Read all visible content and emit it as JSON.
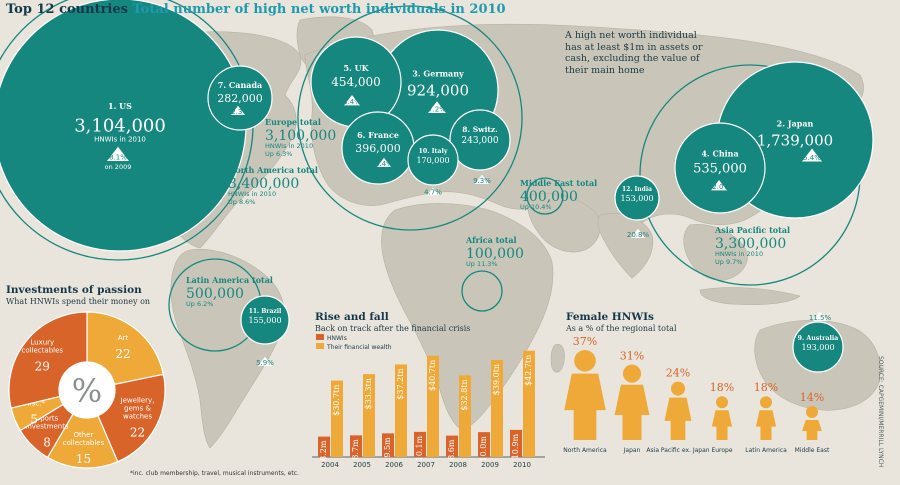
{
  "header": {
    "title_main": "Top 12 countries",
    "title_sub": "Total number of high net worth individuals in 2010"
  },
  "note": "A high net worth individual has at least $1m in assets or cash, excluding the value of their main home",
  "source": "SOURCE: CAPGEMINI/MERRILL LYNCH",
  "colors": {
    "teal": "#16877f",
    "orange_dark": "#d9642a",
    "orange_light": "#eea938",
    "land": "#c9c6b9",
    "background": "#e9e5dc",
    "accent_text": "#1d9aae",
    "female_text": "#d9642a"
  },
  "chart_data": [
    {
      "type": "bubble",
      "title": "Total number of high net worth individuals in 2010",
      "countries": [
        {
          "rank": "1.",
          "name": "US",
          "value": "3,104,000",
          "sub": "HNWIs in 2010",
          "change": "8.1%",
          "change_sub": "on 2009"
        },
        {
          "rank": "2.",
          "name": "Japan",
          "value": "1,739,000",
          "change": "5.4%"
        },
        {
          "rank": "3.",
          "name": "Germany",
          "value": "924,000",
          "change": "7.2%"
        },
        {
          "rank": "4.",
          "name": "China",
          "value": "535,000",
          "change": "12.0%"
        },
        {
          "rank": "5.",
          "name": "UK",
          "value": "454,000",
          "change": "3.4%"
        },
        {
          "rank": "6.",
          "name": "France",
          "value": "396,000",
          "change": "3.4%"
        },
        {
          "rank": "7.",
          "name": "Canada",
          "value": "282,000",
          "change": "12.3%"
        },
        {
          "rank": "8.",
          "name": "Switz.",
          "value": "243,000",
          "change": "9.3%"
        },
        {
          "rank": "9.",
          "name": "Australia",
          "value": "193,000",
          "change": "11.5%"
        },
        {
          "rank": "10.",
          "name": "Italy",
          "value": "170,000",
          "change": "4.7%"
        },
        {
          "rank": "11.",
          "name": "Brazil",
          "value": "155,000",
          "change": "5.9%"
        },
        {
          "rank": "12.",
          "name": "India",
          "value": "153,000",
          "change": "20.8%"
        }
      ],
      "regions": [
        {
          "name": "Europe total",
          "value": "3,100,000",
          "sub": "HNWIs in 2010",
          "change": "Up 6.3%"
        },
        {
          "name": "North America total",
          "value": "3,400,000",
          "sub": "HNWIs in 2010",
          "change": "Up 8.6%"
        },
        {
          "name": "Middle East total",
          "value": "400,000",
          "change": "Up 10.4%"
        },
        {
          "name": "Africa total",
          "value": "100,000",
          "change": "Up 11.3%"
        },
        {
          "name": "Latin America total",
          "value": "500,000",
          "change": "Up 6.2%"
        },
        {
          "name": "Asia Pacific total",
          "value": "3,300,000",
          "sub": "HNWIs in 2010",
          "change": "Up 9.7%"
        }
      ]
    },
    {
      "type": "pie",
      "title": "Investments of passion",
      "subtitle": "What HNWIs spend their money on",
      "center_symbol": "%",
      "slices": [
        {
          "label": "Art",
          "value": 22
        },
        {
          "label": "Jewellery, gems & watches",
          "value": 22
        },
        {
          "label": "Other collectables",
          "value": 15
        },
        {
          "label": "Sports investments",
          "value": 8
        },
        {
          "label": "Misc.*",
          "value": 5
        },
        {
          "label": "Luxury collectables",
          "value": 29
        }
      ],
      "footnote": "*inc. club membership, travel, musical instruments, etc."
    },
    {
      "type": "bar",
      "title": "Rise and fall",
      "subtitle": "Back on track after the financial crisis",
      "categories": [
        "2004",
        "2005",
        "2006",
        "2007",
        "2008",
        "2009",
        "2010"
      ],
      "series": [
        {
          "name": "HNWIs",
          "values": [
            8.2,
            8.7,
            9.5,
            10.1,
            8.6,
            10.0,
            10.9
          ],
          "labels": [
            "8.2m",
            "8.7m",
            "9.5m",
            "10.1m",
            "8.6m",
            "10.0m",
            "10.9m"
          ]
        },
        {
          "name": "Their financial wealth",
          "values": [
            30.7,
            33.3,
            37.2,
            40.7,
            32.8,
            39.0,
            42.7
          ],
          "labels": [
            "$30.7tn",
            "$33.3tn",
            "$37.2tn",
            "$40.7tn",
            "$32.8tn",
            "$39.0tn",
            "$42.7tn"
          ]
        }
      ]
    },
    {
      "type": "bar",
      "title": "Female HNWIs",
      "subtitle": "As a % of the regional total",
      "categories": [
        "North America",
        "Japan",
        "Asia Pacific ex. Japan",
        "Europe",
        "Latin America",
        "Middle East"
      ],
      "values": [
        37,
        31,
        24,
        18,
        18,
        14
      ],
      "labels": [
        "37%",
        "31%",
        "24%",
        "18%",
        "18%",
        "14%"
      ]
    }
  ]
}
